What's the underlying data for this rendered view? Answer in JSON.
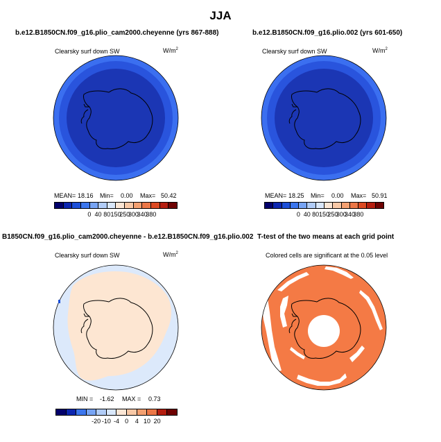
{
  "title": "JJA",
  "panels": [
    {
      "title": "b.e12.B1850CN.f09_g16.plio_cam2000.cheyenne (yrs 867-888)",
      "field": "Clearsky surf down SW",
      "units": "W/m",
      "units_sup": "2",
      "mean_label": "MEAN=",
      "mean": "18.16",
      "min_label": "Min=",
      "min": "0.00",
      "max_label": "Max=",
      "max": "50.42",
      "colorbar": {
        "ticks": [
          "0",
          "40",
          "80",
          "150",
          "250",
          "300",
          "340",
          "380"
        ],
        "colors": [
          "#02006b",
          "#0c26b0",
          "#1b4fd8",
          "#3b76ee",
          "#77a4f4",
          "#b1ccf7",
          "#d9e7fa",
          "#fbe6d5",
          "#f8c8a6",
          "#f3a071",
          "#ec7747",
          "#dc4a23",
          "#b51e10",
          "#6e0202"
        ]
      }
    },
    {
      "title": "b.e12.B1850CN.f09_g16.plio.002 (yrs 601-650)",
      "field": "Clearsky surf down SW",
      "units": "W/m",
      "units_sup": "2",
      "mean_label": "MEAN=",
      "mean": "18.25",
      "min_label": "Min=",
      "min": "0.00",
      "max_label": "Max=",
      "max": "50.91",
      "colorbar": {
        "ticks": [
          "0",
          "40",
          "80",
          "150",
          "250",
          "300",
          "340",
          "380"
        ],
        "colors": [
          "#02006b",
          "#0c26b0",
          "#1b4fd8",
          "#3b76ee",
          "#77a4f4",
          "#b1ccf7",
          "#d9e7fa",
          "#fbe6d5",
          "#f8c8a6",
          "#f3a071",
          "#ec7747",
          "#dc4a23",
          "#b51e10",
          "#6e0202"
        ]
      }
    },
    {
      "title": "B1850CN.f09_g16.plio_cam2000.cheyenne - b.e12.B1850CN.f09_g16.plio.002",
      "field": "Clearsky surf down SW",
      "units": "W/m",
      "units_sup": "2",
      "min_label": "MIN =",
      "min": "-1.62",
      "max_label": "MAX =",
      "max": "0.73",
      "colorbar": {
        "ticks": [
          "-20",
          "-10",
          "-4",
          "0",
          "4",
          "10",
          "20"
        ],
        "colors": [
          "#02006b",
          "#0c26b0",
          "#3b76ee",
          "#77a4f4",
          "#b1ccf7",
          "#d9e7fa",
          "#fbe6d5",
          "#f8c8a6",
          "#f3a071",
          "#ec7747",
          "#b51e10",
          "#6e0202"
        ]
      }
    },
    {
      "title": "T-test of the two means at each grid point",
      "subtitle": "Colored cells are significant at the 0.05 level"
    }
  ],
  "colors": {
    "dark_blue": "#1b36b4",
    "mid_blue": "#2954dd",
    "outer_blue": "#3b6ff0",
    "diff_peach": "#fde6d2",
    "diff_lightblue": "#dce9fb",
    "ttest_orange": "#f47a45"
  }
}
